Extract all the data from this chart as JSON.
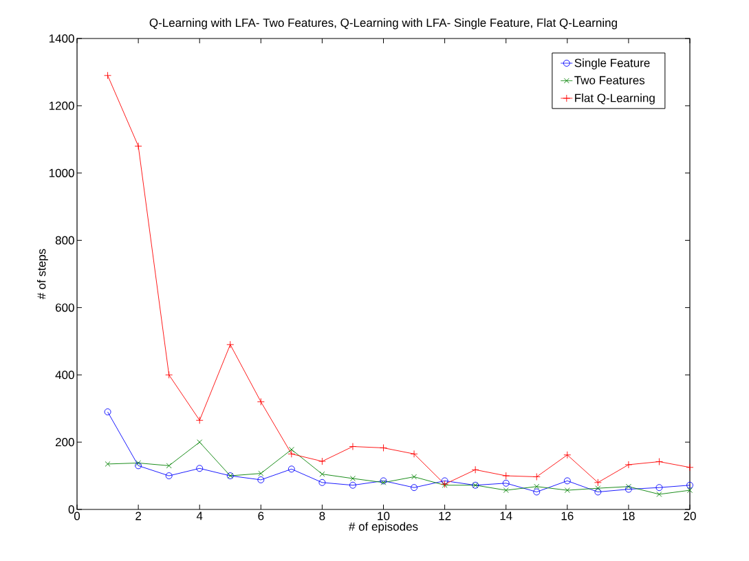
{
  "chart_data": {
    "type": "line",
    "title": "Q-Learning with LFA- Two Features, Q-Learning with LFA- Single Feature, Flat Q-Learning",
    "xlabel": "# of episodes",
    "ylabel": "# of steps",
    "x": [
      1,
      2,
      3,
      4,
      5,
      6,
      7,
      8,
      9,
      10,
      11,
      12,
      13,
      14,
      15,
      16,
      17,
      18,
      19,
      20
    ],
    "series": [
      {
        "name": "Single Feature",
        "color": "#0000ff",
        "marker": "circle",
        "values": [
          290,
          130,
          100,
          122,
          100,
          88,
          120,
          80,
          72,
          85,
          65,
          85,
          72,
          78,
          52,
          85,
          52,
          60,
          65,
          72
        ]
      },
      {
        "name": "Two Features",
        "color": "#008000",
        "marker": "cross",
        "values": [
          135,
          138,
          130,
          200,
          100,
          107,
          178,
          105,
          92,
          80,
          97,
          72,
          72,
          57,
          68,
          57,
          63,
          68,
          45,
          57
        ]
      },
      {
        "name": "Flat Q-Learning",
        "color": "#ff0000",
        "marker": "plus",
        "values": [
          1290,
          1080,
          400,
          265,
          490,
          320,
          165,
          143,
          187,
          183,
          165,
          75,
          118,
          100,
          97,
          162,
          80,
          133,
          142,
          125
        ]
      }
    ],
    "xlim": [
      0,
      20
    ],
    "xticks": [
      0,
      2,
      4,
      6,
      8,
      10,
      12,
      14,
      16,
      18,
      20
    ],
    "ylim": [
      0,
      1400
    ],
    "yticks": [
      0,
      200,
      400,
      600,
      800,
      1000,
      1200,
      1400
    ],
    "grid": false,
    "legend": "top right",
    "line_style": "solid"
  }
}
